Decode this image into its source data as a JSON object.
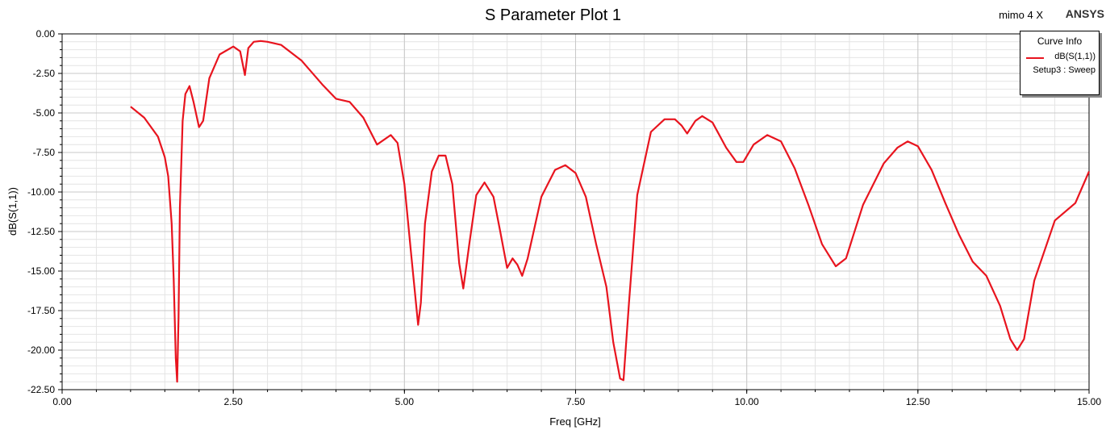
{
  "header": {
    "title": "S Parameter Plot 1",
    "project": "mimo 4 X",
    "brand": "ANSYS"
  },
  "legend": {
    "title": "Curve Info",
    "curve_name": "dB(S(1,1))",
    "sweep": "Setup3 : Sweep"
  },
  "colors": {
    "curve": "#e8141e",
    "grid": "#c8c8c8",
    "frame": "#000000"
  },
  "chart_data": {
    "type": "line",
    "title": "S Parameter Plot 1",
    "xlabel": "Freq [GHz]",
    "ylabel": "dB(S(1,1))",
    "xlim": [
      0,
      15
    ],
    "ylim": [
      -22.5,
      0
    ],
    "grid": true,
    "legend_position": "top-right",
    "x_ticks": [
      "0.00",
      "2.50",
      "5.00",
      "7.50",
      "10.00",
      "12.50",
      "15.00"
    ],
    "y_ticks": [
      "0.00",
      "-2.50",
      "-5.00",
      "-7.50",
      "-10.00",
      "-12.50",
      "-15.00",
      "-17.50",
      "-20.00",
      "-22.50"
    ],
    "series": [
      {
        "name": "dB(S(1,1))",
        "x": [
          1.0,
          1.2,
          1.4,
          1.5,
          1.55,
          1.6,
          1.63,
          1.66,
          1.68,
          1.7,
          1.72,
          1.76,
          1.8,
          1.86,
          1.92,
          2.0,
          2.06,
          2.15,
          2.3,
          2.5,
          2.6,
          2.67,
          2.72,
          2.8,
          2.9,
          3.0,
          3.2,
          3.5,
          3.8,
          4.0,
          4.2,
          4.4,
          4.6,
          4.8,
          4.9,
          5.0,
          5.1,
          5.2,
          5.24,
          5.3,
          5.4,
          5.5,
          5.6,
          5.7,
          5.8,
          5.86,
          5.95,
          6.05,
          6.17,
          6.3,
          6.4,
          6.5,
          6.58,
          6.65,
          6.72,
          6.8,
          7.0,
          7.2,
          7.35,
          7.5,
          7.65,
          7.8,
          7.95,
          8.05,
          8.15,
          8.2,
          8.28,
          8.4,
          8.6,
          8.8,
          8.95,
          9.05,
          9.13,
          9.25,
          9.35,
          9.5,
          9.7,
          9.85,
          9.95,
          10.1,
          10.3,
          10.5,
          10.7,
          10.9,
          11.1,
          11.3,
          11.45,
          11.7,
          12.0,
          12.2,
          12.35,
          12.5,
          12.7,
          12.9,
          13.1,
          13.3,
          13.5,
          13.7,
          13.85,
          13.95,
          14.05,
          14.2,
          14.5,
          14.8,
          15.0
        ],
        "y": [
          -4.6,
          -5.3,
          -6.5,
          -7.8,
          -9.0,
          -12.0,
          -15.5,
          -20.5,
          -22.0,
          -18.0,
          -11.0,
          -5.5,
          -3.8,
          -3.3,
          -4.3,
          -5.9,
          -5.5,
          -2.8,
          -1.3,
          -0.8,
          -1.1,
          -2.6,
          -0.9,
          -0.5,
          -0.45,
          -0.5,
          -0.7,
          -1.7,
          -3.2,
          -4.1,
          -4.3,
          -5.3,
          -7.0,
          -6.4,
          -6.9,
          -9.5,
          -14.0,
          -18.4,
          -17.0,
          -12.0,
          -8.7,
          -7.7,
          -7.7,
          -9.5,
          -14.5,
          -16.1,
          -13.2,
          -10.2,
          -9.4,
          -10.3,
          -12.5,
          -14.8,
          -14.2,
          -14.6,
          -15.3,
          -14.2,
          -10.3,
          -8.6,
          -8.3,
          -8.8,
          -10.3,
          -13.3,
          -16.0,
          -19.5,
          -21.8,
          -21.9,
          -17.0,
          -10.2,
          -6.2,
          -5.4,
          -5.4,
          -5.8,
          -6.3,
          -5.5,
          -5.2,
          -5.6,
          -7.2,
          -8.1,
          -8.1,
          -7.0,
          -6.4,
          -6.8,
          -8.5,
          -10.8,
          -13.3,
          -14.7,
          -14.2,
          -10.8,
          -8.2,
          -7.2,
          -6.8,
          -7.1,
          -8.6,
          -10.7,
          -12.7,
          -14.4,
          -15.3,
          -17.2,
          -19.3,
          -20.0,
          -19.3,
          -15.6,
          -11.8,
          -10.7,
          -8.7
        ]
      }
    ]
  }
}
